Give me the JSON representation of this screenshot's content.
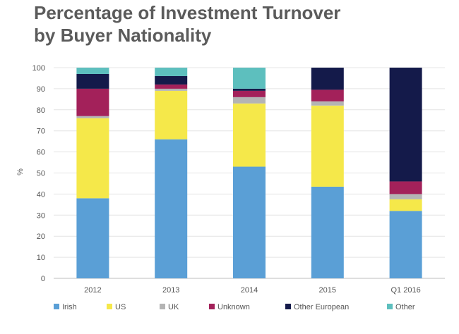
{
  "chart_data": {
    "type": "bar",
    "stacked": true,
    "title": [
      "Percentage of Investment Turnover",
      "by Buyer Nationality"
    ],
    "ylabel": "%",
    "xlabel": "",
    "ylim": [
      0,
      100
    ],
    "yticks": [
      0,
      10,
      20,
      30,
      40,
      50,
      60,
      70,
      80,
      90,
      100
    ],
    "grid": true,
    "legend_position": "bottom",
    "categories": [
      "2012",
      "2013",
      "2014",
      "2015",
      "Q1 2016"
    ],
    "series": [
      {
        "name": "Irish",
        "color": "#5a9fd6",
        "values": [
          38,
          66,
          53,
          43.5,
          32
        ]
      },
      {
        "name": "US",
        "color": "#f5e84a",
        "values": [
          38,
          23,
          30,
          38.5,
          5.5
        ]
      },
      {
        "name": "UK",
        "color": "#b4b4b4",
        "values": [
          1,
          1,
          3,
          2,
          2.5
        ]
      },
      {
        "name": "Unknown",
        "color": "#a3215a",
        "values": [
          13,
          2,
          3,
          5.5,
          6
        ]
      },
      {
        "name": "Other European",
        "color": "#141a4a",
        "values": [
          7,
          4,
          1,
          10.5,
          54
        ]
      },
      {
        "name": "Other",
        "color": "#5dbfbe",
        "values": [
          3,
          4,
          10,
          0,
          0
        ]
      }
    ]
  }
}
